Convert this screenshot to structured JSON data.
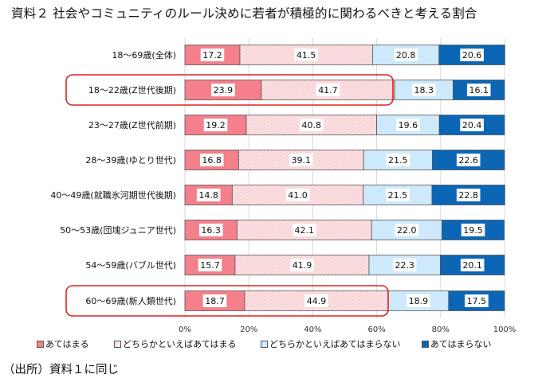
{
  "title": "資料２ 社会やコミュニティのルール決めに若者が積極的に関わるべきと考える割合",
  "source_note": "（出所）資料１に同じ",
  "colors": {
    "agree": "#f4808b",
    "somewhat_agree": "#fde4e6",
    "somewhat_disagree": "#cde9fb",
    "disagree": "#0b66b5",
    "highlight": "#e02020",
    "grid": "#d9d9d9"
  },
  "chart_data": {
    "type": "bar",
    "orientation": "horizontal",
    "stacked": true,
    "percent_stacked": true,
    "title": "資料２ 社会やコミュニティのルール決めに若者が積極的に関わるべきと考える割合",
    "xlabel": "",
    "ylabel": "",
    "xlim": [
      0,
      100
    ],
    "x_ticks": [
      "0%",
      "20%",
      "40%",
      "60%",
      "80%",
      "100%"
    ],
    "grid": true,
    "legend_position": "bottom",
    "categories": [
      "18～69歳(全体)",
      "18～22歳(Z世代後期)",
      "23～27歳(Z世代前期)",
      "28～39歳(ゆとり世代)",
      "40～49歳(就職氷河期世代後期)",
      "50～53歳(団塊ジュニア世代)",
      "54～59歳(バブル世代)",
      "60～69歳(新人類世代)"
    ],
    "highlighted_categories": [
      "18～22歳(Z世代後期)",
      "60～69歳(新人類世代)"
    ],
    "series": [
      {
        "name": "あてはまる",
        "key": "agree",
        "values": [
          17.2,
          23.9,
          19.2,
          16.8,
          14.8,
          16.3,
          15.7,
          18.7
        ]
      },
      {
        "name": "どちらかといえばあてはまる",
        "key": "somewhat_agree",
        "values": [
          41.5,
          41.7,
          40.8,
          39.1,
          41.0,
          42.1,
          41.9,
          44.9
        ]
      },
      {
        "name": "どちらかといえばあてはまらない",
        "key": "somewhat_disagree",
        "values": [
          20.8,
          18.3,
          19.6,
          21.5,
          21.5,
          22.0,
          22.3,
          18.9
        ]
      },
      {
        "name": "あてはまらない",
        "key": "disagree",
        "values": [
          20.6,
          16.1,
          20.4,
          22.6,
          22.8,
          19.5,
          20.1,
          17.5
        ]
      }
    ]
  }
}
